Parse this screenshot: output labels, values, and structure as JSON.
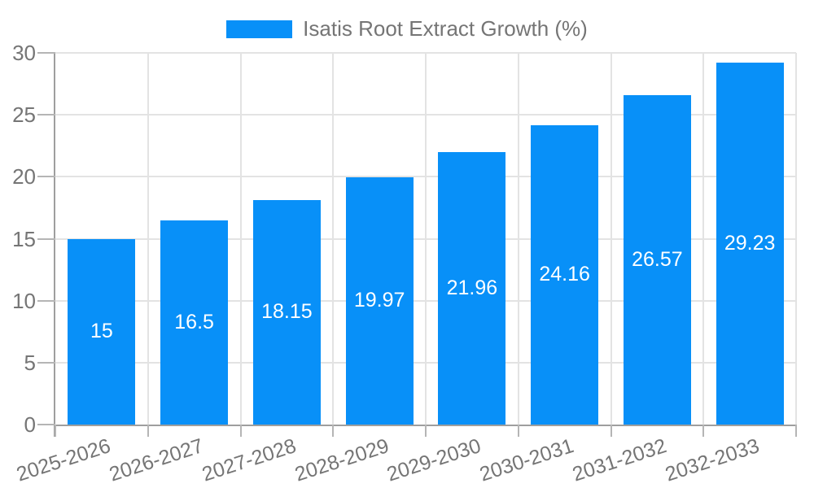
{
  "legend": {
    "label": "Isatis Root Extract Growth (%)"
  },
  "colors": {
    "bar": "#0890f8",
    "grid": "#e3e3e3",
    "axis": "#9e9e9e",
    "tick_mark": "#b5b5b5",
    "tick_text": "#757575",
    "bar_label_text": "#ffffff",
    "background": "#ffffff"
  },
  "chart_data": {
    "type": "bar",
    "title": "Isatis Root Extract Growth (%)",
    "categories": [
      "2025-2026",
      "2026-2027",
      "2027-2028",
      "2028-2029",
      "2029-2030",
      "2030-2031",
      "2031-2032",
      "2032-2033"
    ],
    "values": [
      15,
      16.5,
      18.15,
      19.97,
      21.96,
      24.16,
      26.57,
      29.23
    ],
    "value_labels": [
      "15",
      "16.5",
      "18.15",
      "19.97",
      "21.96",
      "24.16",
      "26.57",
      "29.23"
    ],
    "xlabel": "",
    "ylabel": "",
    "ylim": [
      0,
      30
    ],
    "yticks": [
      0,
      5,
      10,
      15,
      20,
      25,
      30
    ],
    "grid": true,
    "legend_position": "top-center",
    "x_tick_rotation_deg": -18
  }
}
